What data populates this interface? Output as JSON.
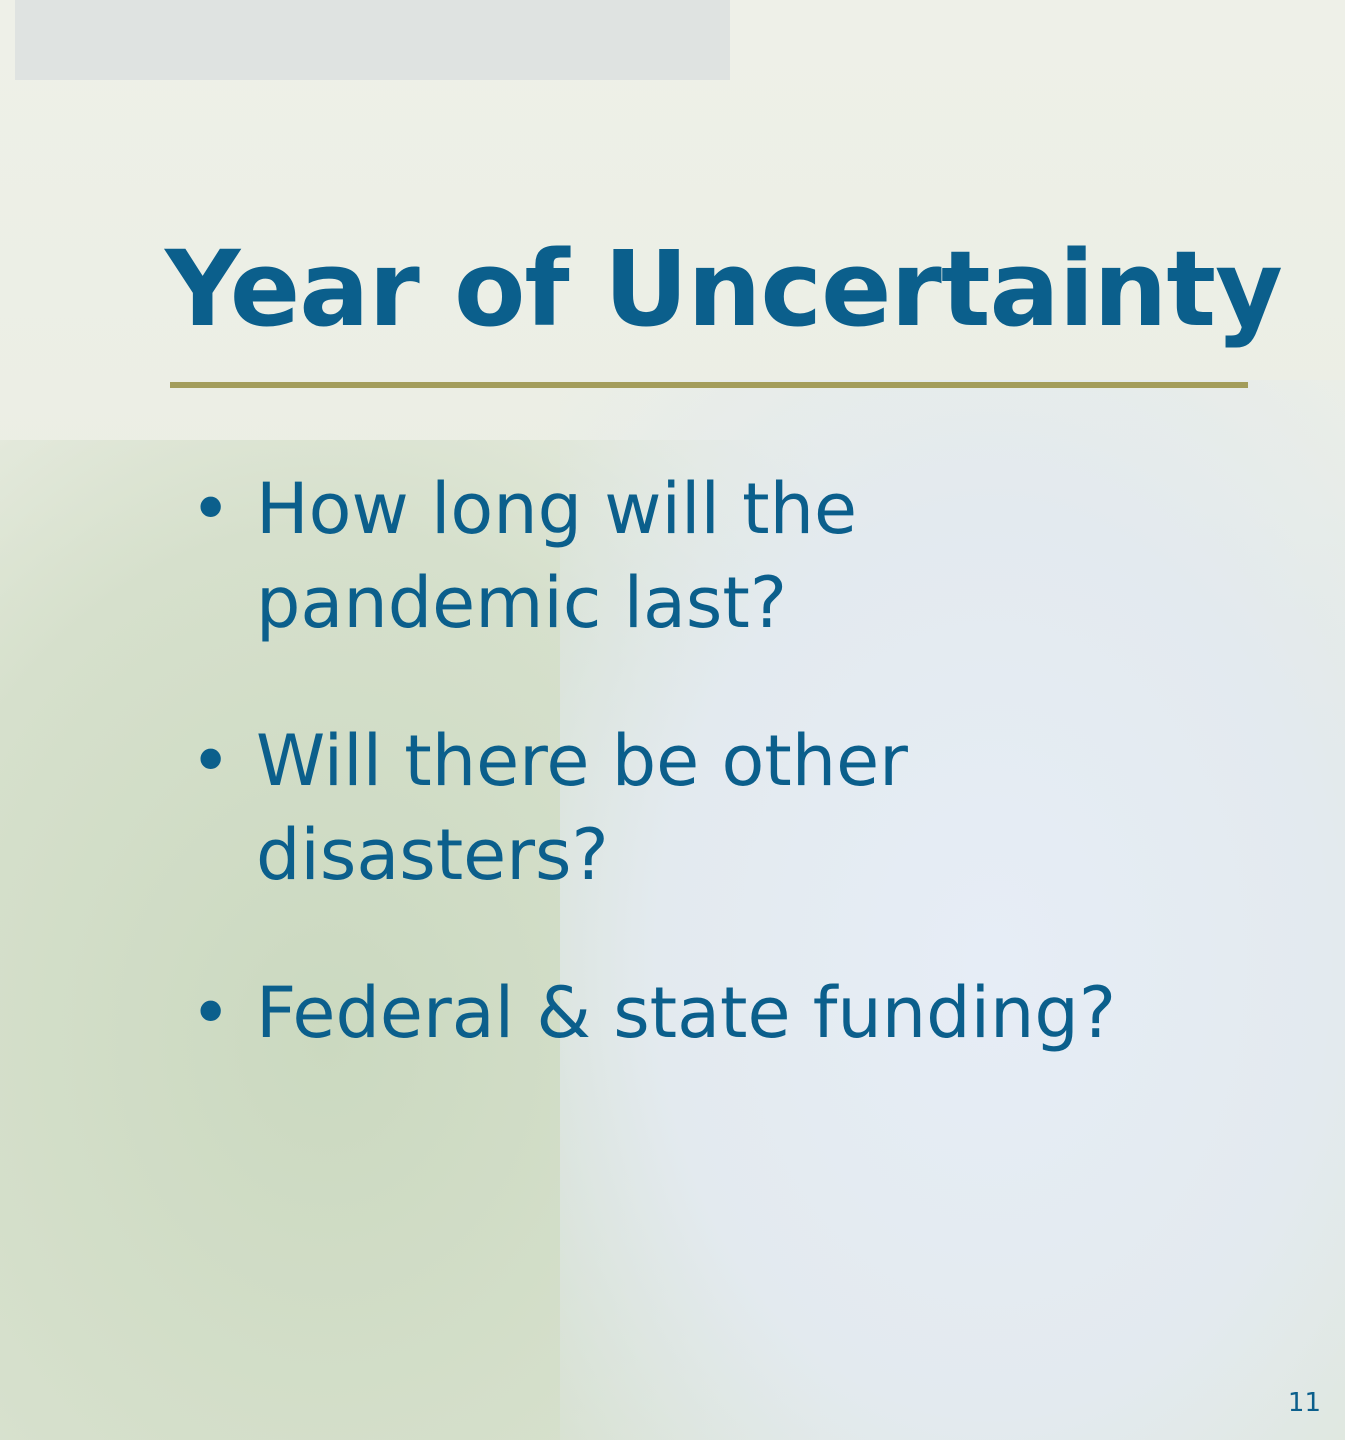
{
  "slide": {
    "title": "Year of Uncertainty",
    "bullets": [
      "How long will the pandemic last?",
      "Will there be other disasters?",
      "Federal & state funding?"
    ],
    "page_number": "11"
  }
}
